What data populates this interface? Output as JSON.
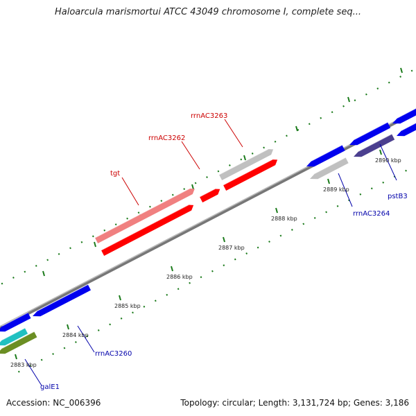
{
  "title": "Haloarcula marismortui ATCC 43049 chromosome I, complete seq...",
  "footer": {
    "accession": "Accession: NC_006396",
    "stats": "Topology: circular; Length: 3,131,724 bp; Genes: 3,186"
  },
  "colors": {
    "forward_strand": "#ff0000",
    "forward_light": "#f08080",
    "reverse_strand": "#0000ee",
    "rrna": "#c0c0c0",
    "dark_gene": "#4b3f8f",
    "cyan_gene": "#20c0c0",
    "olive_gene": "#6b8e23",
    "tick": "#1a7a1a",
    "backbone": "#808080",
    "label_red": "#cc0000",
    "label_blue": "#0000aa"
  },
  "scale": {
    "ticks": [
      {
        "label": "2883 kbp"
      },
      {
        "label": "2884 kbp"
      },
      {
        "label": "2885 kbp"
      },
      {
        "label": "2886 kbp"
      },
      {
        "label": "2887 kbp"
      },
      {
        "label": "2888 kbp"
      },
      {
        "label": "2889 kbp"
      },
      {
        "label": "2890 kbp"
      }
    ]
  },
  "gene_labels": {
    "tgt": "tgt",
    "rrnAC3262": "rrnAC3262",
    "rrnAC3263": "rrnAC3263",
    "rrnAC3264": "rrnAC3264",
    "pstB3": "pstB3",
    "rrnAC3260": "rrnAC3260",
    "galE1": "galE1"
  }
}
